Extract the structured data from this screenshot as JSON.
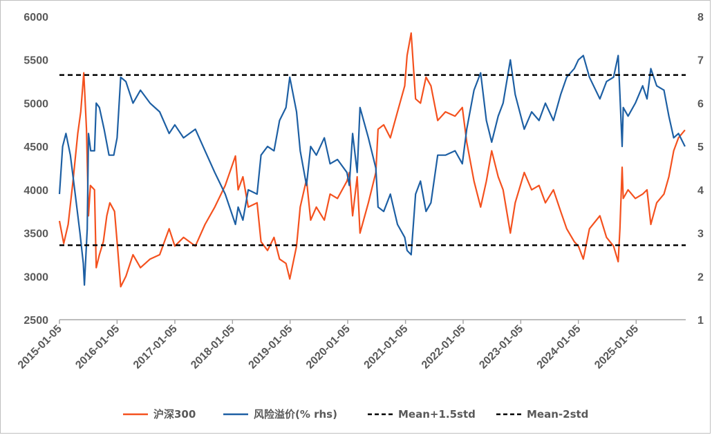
{
  "chart_data": {
    "type": "line",
    "title": "",
    "xlabel": "",
    "ylabel": "",
    "x_tick_labels": [
      "2015-01-05",
      "2016-01-05",
      "2017-01-05",
      "2018-01-05",
      "2019-01-05",
      "2020-01-05",
      "2021-01-05",
      "2022-01-05",
      "2023-01-05",
      "2024-01-05",
      "2025-01-05"
    ],
    "x_range": [
      "2015-01-05",
      "2025-11-15"
    ],
    "y_left": {
      "min": 2500,
      "max": 6000,
      "ticks": [
        "2500",
        "3000",
        "3500",
        "4000",
        "4500",
        "5000",
        "5500",
        "6000"
      ]
    },
    "y_right": {
      "min": 1,
      "max": 8,
      "ticks": [
        "1",
        "2",
        "3",
        "4",
        "5",
        "6",
        "7",
        "8"
      ]
    },
    "grid": false,
    "legend_position": "bottom",
    "series": [
      {
        "name": "沪深300",
        "axis": "left",
        "color": "#f4511e",
        "points": [
          [
            "2015-01-05",
            3640
          ],
          [
            "2015-02-01",
            3380
          ],
          [
            "2015-03-01",
            3600
          ],
          [
            "2015-04-01",
            4100
          ],
          [
            "2015-05-01",
            4650
          ],
          [
            "2015-05-20",
            4900
          ],
          [
            "2015-06-08",
            5350
          ],
          [
            "2015-06-25",
            4700
          ],
          [
            "2015-07-08",
            3700
          ],
          [
            "2015-07-20",
            4050
          ],
          [
            "2015-08-15",
            4000
          ],
          [
            "2015-08-26",
            3100
          ],
          [
            "2015-09-15",
            3250
          ],
          [
            "2015-10-10",
            3400
          ],
          [
            "2015-11-01",
            3700
          ],
          [
            "2015-11-20",
            3850
          ],
          [
            "2015-12-20",
            3750
          ],
          [
            "2016-01-05",
            3400
          ],
          [
            "2016-01-28",
            2880
          ],
          [
            "2016-03-01",
            3000
          ],
          [
            "2016-04-15",
            3250
          ],
          [
            "2016-06-01",
            3100
          ],
          [
            "2016-08-01",
            3200
          ],
          [
            "2016-10-01",
            3250
          ],
          [
            "2016-11-30",
            3550
          ],
          [
            "2017-01-05",
            3350
          ],
          [
            "2017-03-01",
            3450
          ],
          [
            "2017-05-15",
            3350
          ],
          [
            "2017-07-15",
            3600
          ],
          [
            "2017-09-15",
            3800
          ],
          [
            "2017-11-20",
            4050
          ],
          [
            "2018-01-24",
            4390
          ],
          [
            "2018-02-10",
            4000
          ],
          [
            "2018-03-12",
            4150
          ],
          [
            "2018-04-15",
            3800
          ],
          [
            "2018-06-10",
            3850
          ],
          [
            "2018-07-05",
            3400
          ],
          [
            "2018-08-15",
            3300
          ],
          [
            "2018-09-25",
            3450
          ],
          [
            "2018-10-30",
            3200
          ],
          [
            "2018-12-10",
            3150
          ],
          [
            "2019-01-03",
            2970
          ],
          [
            "2019-02-15",
            3350
          ],
          [
            "2019-03-10",
            3800
          ],
          [
            "2019-04-19",
            4120
          ],
          [
            "2019-05-15",
            3650
          ],
          [
            "2019-06-20",
            3800
          ],
          [
            "2019-08-10",
            3650
          ],
          [
            "2019-09-15",
            3950
          ],
          [
            "2019-11-01",
            3900
          ],
          [
            "2019-12-31",
            4100
          ],
          [
            "2020-01-15",
            4200
          ],
          [
            "2020-02-05",
            3700
          ],
          [
            "2020-03-05",
            4150
          ],
          [
            "2020-03-23",
            3500
          ],
          [
            "2020-05-15",
            3850
          ],
          [
            "2020-07-01",
            4200
          ],
          [
            "2020-07-15",
            4700
          ],
          [
            "2020-08-20",
            4750
          ],
          [
            "2020-10-01",
            4600
          ],
          [
            "2020-11-15",
            4900
          ],
          [
            "2020-12-31",
            5200
          ],
          [
            "2021-01-15",
            5550
          ],
          [
            "2021-02-10",
            5810
          ],
          [
            "2021-03-10",
            5050
          ],
          [
            "2021-04-10",
            5000
          ],
          [
            "2021-05-15",
            5300
          ],
          [
            "2021-06-15",
            5200
          ],
          [
            "2021-07-28",
            4800
          ],
          [
            "2021-09-15",
            4900
          ],
          [
            "2021-11-15",
            4850
          ],
          [
            "2021-12-31",
            4950
          ],
          [
            "2022-01-28",
            4550
          ],
          [
            "2022-03-15",
            4100
          ],
          [
            "2022-04-26",
            3800
          ],
          [
            "2022-06-01",
            4100
          ],
          [
            "2022-07-05",
            4450
          ],
          [
            "2022-08-15",
            4150
          ],
          [
            "2022-09-15",
            4000
          ],
          [
            "2022-10-31",
            3500
          ],
          [
            "2022-12-01",
            3850
          ],
          [
            "2023-01-27",
            4200
          ],
          [
            "2023-03-15",
            4000
          ],
          [
            "2023-05-01",
            4050
          ],
          [
            "2023-06-10",
            3850
          ],
          [
            "2023-07-31",
            4000
          ],
          [
            "2023-09-15",
            3750
          ],
          [
            "2023-10-23",
            3550
          ],
          [
            "2023-12-10",
            3400
          ],
          [
            "2024-01-05",
            3350
          ],
          [
            "2024-02-05",
            3200
          ],
          [
            "2024-03-15",
            3550
          ],
          [
            "2024-05-20",
            3700
          ],
          [
            "2024-07-01",
            3450
          ],
          [
            "2024-08-15",
            3350
          ],
          [
            "2024-09-13",
            3170
          ],
          [
            "2024-09-24",
            3550
          ],
          [
            "2024-10-08",
            4260
          ],
          [
            "2024-10-15",
            3900
          ],
          [
            "2024-11-15",
            4000
          ],
          [
            "2024-12-31",
            3900
          ],
          [
            "2025-02-15",
            3950
          ],
          [
            "2025-03-15",
            4000
          ],
          [
            "2025-04-08",
            3600
          ],
          [
            "2025-05-15",
            3850
          ],
          [
            "2025-06-30",
            3950
          ],
          [
            "2025-07-31",
            4150
          ],
          [
            "2025-08-31",
            4450
          ],
          [
            "2025-09-30",
            4600
          ],
          [
            "2025-11-10",
            4690
          ]
        ]
      },
      {
        "name": "风险溢价(% rhs)",
        "axis": "right",
        "color": "#1d5fa3",
        "points": [
          [
            "2015-01-05",
            3.9
          ],
          [
            "2015-01-25",
            5.0
          ],
          [
            "2015-02-15",
            5.3
          ],
          [
            "2015-03-15",
            4.8
          ],
          [
            "2015-04-15",
            3.9
          ],
          [
            "2015-05-15",
            3.0
          ],
          [
            "2015-06-05",
            2.3
          ],
          [
            "2015-06-12",
            1.8
          ],
          [
            "2015-06-30",
            3.1
          ],
          [
            "2015-07-08",
            5.3
          ],
          [
            "2015-07-22",
            4.9
          ],
          [
            "2015-08-15",
            4.9
          ],
          [
            "2015-08-26",
            6.0
          ],
          [
            "2015-09-15",
            5.9
          ],
          [
            "2015-10-15",
            5.4
          ],
          [
            "2015-11-15",
            4.8
          ],
          [
            "2015-12-15",
            4.8
          ],
          [
            "2016-01-05",
            5.2
          ],
          [
            "2016-01-28",
            6.6
          ],
          [
            "2016-03-01",
            6.5
          ],
          [
            "2016-04-15",
            6.0
          ],
          [
            "2016-06-01",
            6.3
          ],
          [
            "2016-08-01",
            6.0
          ],
          [
            "2016-10-01",
            5.8
          ],
          [
            "2016-11-30",
            5.3
          ],
          [
            "2017-01-05",
            5.5
          ],
          [
            "2017-03-01",
            5.2
          ],
          [
            "2017-05-15",
            5.4
          ],
          [
            "2017-07-15",
            4.9
          ],
          [
            "2017-09-15",
            4.4
          ],
          [
            "2017-11-20",
            3.9
          ],
          [
            "2018-01-24",
            3.2
          ],
          [
            "2018-02-10",
            3.6
          ],
          [
            "2018-03-12",
            3.3
          ],
          [
            "2018-04-15",
            4.0
          ],
          [
            "2018-06-10",
            3.9
          ],
          [
            "2018-07-05",
            4.8
          ],
          [
            "2018-08-15",
            5.0
          ],
          [
            "2018-09-25",
            4.9
          ],
          [
            "2018-10-30",
            5.6
          ],
          [
            "2018-12-10",
            5.9
          ],
          [
            "2019-01-03",
            6.6
          ],
          [
            "2019-02-15",
            5.8
          ],
          [
            "2019-03-10",
            4.9
          ],
          [
            "2019-04-19",
            4.1
          ],
          [
            "2019-05-15",
            5.0
          ],
          [
            "2019-06-20",
            4.8
          ],
          [
            "2019-08-10",
            5.2
          ],
          [
            "2019-09-15",
            4.6
          ],
          [
            "2019-11-01",
            4.7
          ],
          [
            "2019-12-31",
            4.4
          ],
          [
            "2020-01-15",
            4.1
          ],
          [
            "2020-02-05",
            5.3
          ],
          [
            "2020-03-05",
            4.4
          ],
          [
            "2020-03-23",
            5.9
          ],
          [
            "2020-05-15",
            5.2
          ],
          [
            "2020-07-01",
            4.5
          ],
          [
            "2020-07-15",
            3.6
          ],
          [
            "2020-08-20",
            3.5
          ],
          [
            "2020-10-01",
            3.9
          ],
          [
            "2020-11-15",
            3.2
          ],
          [
            "2020-12-31",
            2.9
          ],
          [
            "2021-01-15",
            2.6
          ],
          [
            "2021-02-10",
            2.5
          ],
          [
            "2021-03-10",
            3.9
          ],
          [
            "2021-04-10",
            4.2
          ],
          [
            "2021-05-15",
            3.5
          ],
          [
            "2021-06-15",
            3.7
          ],
          [
            "2021-07-28",
            4.8
          ],
          [
            "2021-09-15",
            4.8
          ],
          [
            "2021-11-15",
            4.9
          ],
          [
            "2021-12-31",
            4.6
          ],
          [
            "2022-01-28",
            5.4
          ],
          [
            "2022-03-15",
            6.3
          ],
          [
            "2022-04-26",
            6.7
          ],
          [
            "2022-06-01",
            5.6
          ],
          [
            "2022-07-05",
            5.1
          ],
          [
            "2022-08-15",
            5.7
          ],
          [
            "2022-09-15",
            6.0
          ],
          [
            "2022-10-31",
            7.0
          ],
          [
            "2022-12-01",
            6.2
          ],
          [
            "2023-01-27",
            5.4
          ],
          [
            "2023-03-15",
            5.8
          ],
          [
            "2023-05-01",
            5.6
          ],
          [
            "2023-06-10",
            6.0
          ],
          [
            "2023-07-31",
            5.6
          ],
          [
            "2023-09-15",
            6.2
          ],
          [
            "2023-10-23",
            6.6
          ],
          [
            "2023-12-10",
            6.8
          ],
          [
            "2024-01-05",
            7.0
          ],
          [
            "2024-02-05",
            7.1
          ],
          [
            "2024-03-15",
            6.6
          ],
          [
            "2024-05-20",
            6.1
          ],
          [
            "2024-07-01",
            6.5
          ],
          [
            "2024-08-15",
            6.6
          ],
          [
            "2024-09-13",
            7.1
          ],
          [
            "2024-09-24",
            6.2
          ],
          [
            "2024-10-08",
            5.0
          ],
          [
            "2024-10-15",
            5.9
          ],
          [
            "2024-11-15",
            5.7
          ],
          [
            "2024-12-31",
            6.0
          ],
          [
            "2025-02-15",
            6.4
          ],
          [
            "2025-03-15",
            6.1
          ],
          [
            "2025-04-08",
            6.8
          ],
          [
            "2025-05-15",
            6.4
          ],
          [
            "2025-06-30",
            6.3
          ],
          [
            "2025-07-31",
            5.7
          ],
          [
            "2025-08-31",
            5.2
          ],
          [
            "2025-09-30",
            5.3
          ],
          [
            "2025-11-10",
            5.0
          ]
        ]
      },
      {
        "name": "Mean+1.5std",
        "axis": "right",
        "color": "#000000",
        "dashed": true,
        "value": 6.65
      },
      {
        "name": "Mean-2std",
        "axis": "right",
        "color": "#000000",
        "dashed": true,
        "value": 2.72
      }
    ]
  }
}
